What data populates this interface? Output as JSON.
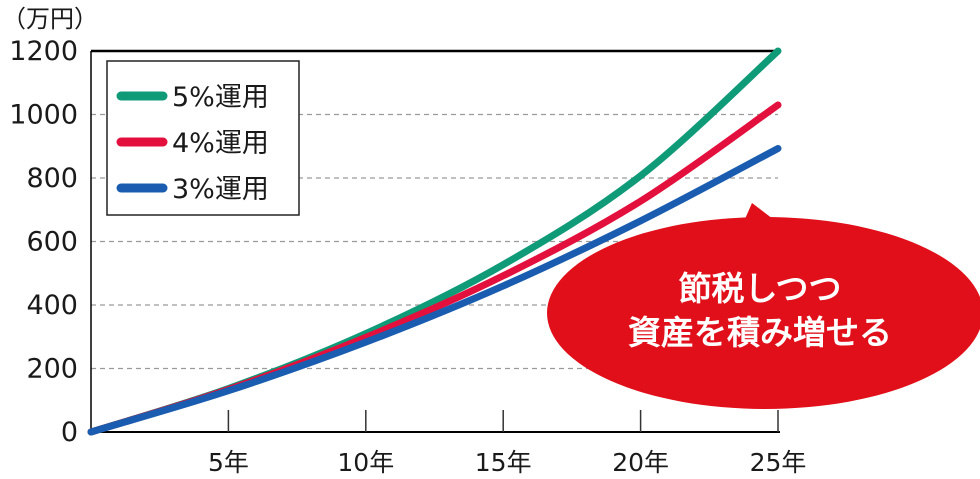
{
  "chart_data": {
    "type": "line",
    "unit_label": "（万円）",
    "x": [
      0,
      5,
      10,
      15,
      20,
      25
    ],
    "x_tick_labels": [
      "5年",
      "10年",
      "15年",
      "20年",
      "25年"
    ],
    "x_tick_values": [
      5,
      10,
      15,
      20,
      25
    ],
    "xlim": [
      0,
      25
    ],
    "y_tick_labels": [
      "0",
      "200",
      "400",
      "600",
      "800",
      "1000",
      "1200"
    ],
    "y_tick_values": [
      0,
      200,
      400,
      600,
      800,
      1000,
      1200
    ],
    "ylim": [
      0,
      1200
    ],
    "grid": "dashed horizontal",
    "legend_position": "top-left",
    "series": [
      {
        "name": "5%運用",
        "color": "#0f9a78",
        "values": [
          0,
          137,
          310,
          527,
          807,
          1200
        ]
      },
      {
        "name": "4%運用",
        "color": "#e3103d",
        "values": [
          0,
          134,
          298,
          492,
          727,
          1030
        ]
      },
      {
        "name": "3%運用",
        "color": "#1a5db0",
        "values": [
          0,
          130,
          283,
          460,
          665,
          893
        ]
      }
    ],
    "annotation": {
      "lines": [
        "節税しつつ",
        "資産を積み増せる"
      ],
      "color": "#e00f1a"
    }
  }
}
